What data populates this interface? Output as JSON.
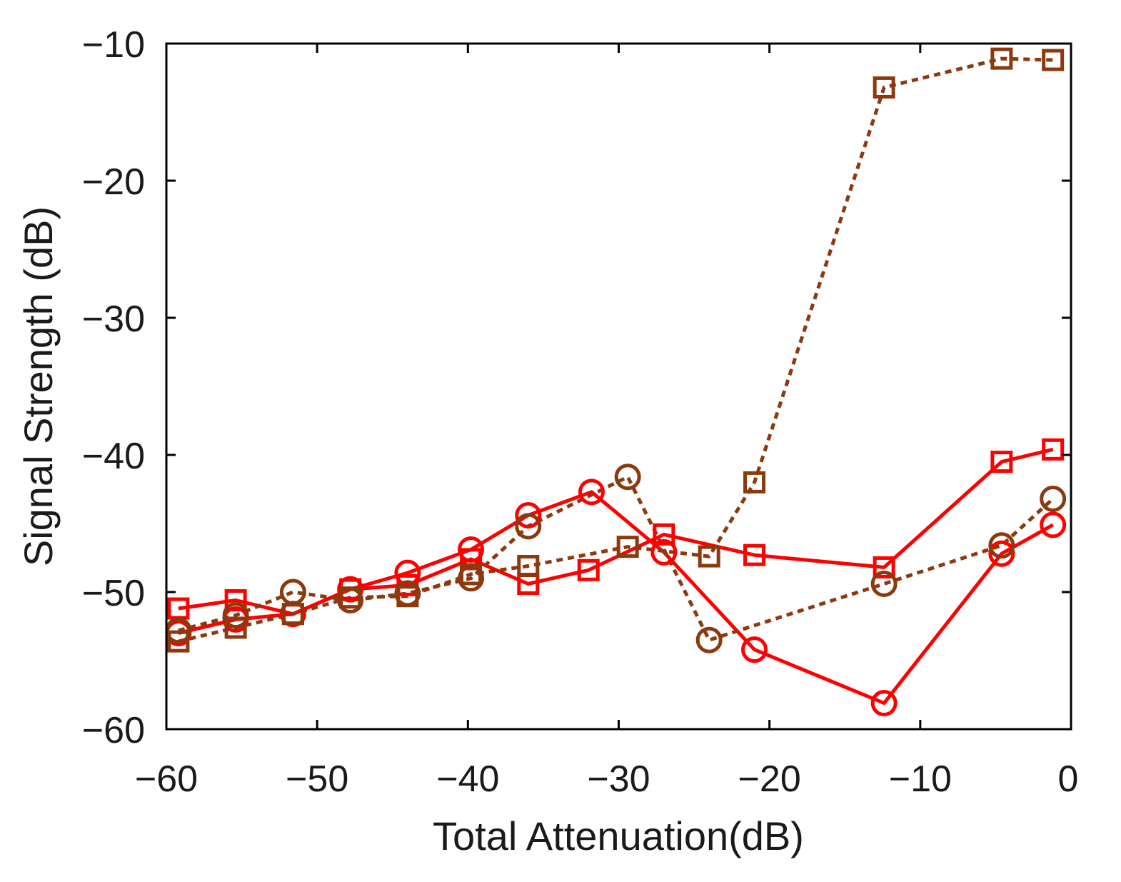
{
  "chart_data": {
    "type": "line",
    "title": "",
    "xlabel": "Total Attenuation(dB)",
    "ylabel": "Signal Strength (dB)",
    "xlim": [
      -60,
      0
    ],
    "ylim": [
      -60,
      -10
    ],
    "xticks": [
      -60,
      -50,
      -40,
      -30,
      -20,
      -10,
      0
    ],
    "yticks": [
      -60,
      -50,
      -40,
      -30,
      -20,
      -10
    ],
    "xtick_labels": [
      "−60",
      "−50",
      "−40",
      "−30",
      "−20",
      "−10",
      "0"
    ],
    "ytick_labels": [
      "−60",
      "−50",
      "−40",
      "−30",
      "−20",
      "−10"
    ],
    "grid": false,
    "series": [
      {
        "name": "red-square-solid",
        "color": "#ff0000",
        "line": "solid",
        "marker": "square",
        "x": [
          -59.2,
          -55.4,
          -51.6,
          -47.8,
          -44.0,
          -39.8,
          -36.0,
          -32.0,
          -27.0,
          -21.0,
          -12.4,
          -4.6,
          -1.2
        ],
        "y": [
          -51.2,
          -50.6,
          -51.6,
          -49.8,
          -49.5,
          -47.6,
          -49.4,
          -48.4,
          -45.8,
          -47.3,
          -48.2,
          -40.5,
          -39.6
        ]
      },
      {
        "name": "red-circle-solid",
        "color": "#ff0000",
        "line": "solid",
        "marker": "circle",
        "x": [
          -59.2,
          -55.4,
          -51.6,
          -47.8,
          -44.0,
          -39.8,
          -36.0,
          -31.8,
          -27.0,
          -21.0,
          -12.4,
          -4.6,
          -1.2
        ],
        "y": [
          -53.0,
          -52.0,
          -51.6,
          -49.8,
          -48.6,
          -46.9,
          -44.4,
          -42.7,
          -47.1,
          -54.2,
          -58.1,
          -47.2,
          -45.1
        ]
      },
      {
        "name": "brown-square-dotted",
        "color": "#8b3a0f",
        "line": "dotted",
        "marker": "square",
        "x": [
          -59.2,
          -55.4,
          -51.6,
          -47.8,
          -44.0,
          -39.8,
          -36.0,
          -29.4,
          -24.0,
          -21.0,
          -12.4,
          -4.6,
          -1.2
        ],
        "y": [
          -53.6,
          -52.6,
          -51.6,
          -50.4,
          -50.3,
          -48.7,
          -48.1,
          -46.7,
          -47.4,
          -42.0,
          -13.2,
          -11.1,
          -11.2
        ]
      },
      {
        "name": "brown-circle-dotted",
        "color": "#8b3a0f",
        "line": "dotted",
        "marker": "circle",
        "x": [
          -59.2,
          -55.4,
          -51.6,
          -47.8,
          -44.0,
          -39.8,
          -36.0,
          -29.4,
          -24.0,
          -12.4,
          -4.6,
          -1.2
        ],
        "y": [
          -52.8,
          -51.7,
          -50.0,
          -50.6,
          -50.1,
          -49.0,
          -45.2,
          -41.6,
          -53.5,
          -49.4,
          -46.6,
          -43.2
        ]
      }
    ]
  }
}
